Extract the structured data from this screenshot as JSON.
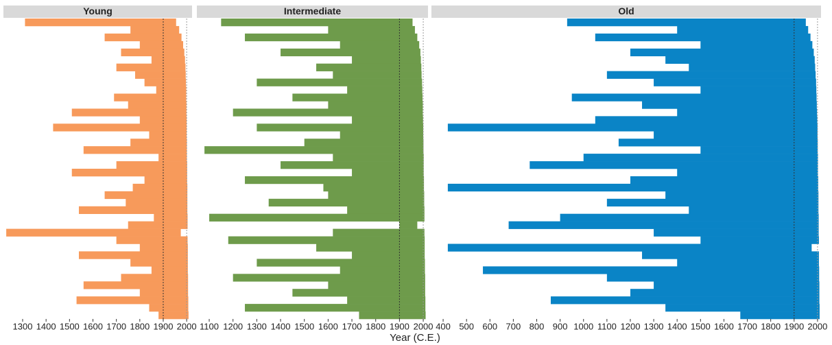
{
  "chart_data": [
    {
      "type": "range",
      "title": "Young",
      "color": "#f79a5b",
      "xlim": [
        1218,
        2023
      ],
      "xticks": [
        1300,
        1400,
        1500,
        1600,
        1700,
        1800,
        1900,
        2000
      ],
      "reference_lines": [
        1900,
        2000
      ],
      "start": [
        1310,
        1760,
        1650,
        1800,
        1720,
        1850,
        1700,
        1780,
        1820,
        1870,
        1690,
        1750,
        1510,
        1800,
        1430,
        1840,
        1760,
        1560,
        1880,
        1700,
        1510,
        1820,
        1770,
        1650,
        1740,
        1540,
        1860,
        1750,
        1230,
        1700,
        1800,
        1540,
        1760,
        1850,
        1720,
        1560,
        1800,
        1530,
        1840,
        1880
      ],
      "end": [
        1955,
        1968,
        1978,
        1985,
        1990,
        1993,
        1995,
        1996,
        1997,
        1998,
        1998,
        1999,
        1999,
        2000,
        2000,
        2000,
        2001,
        2001,
        2001,
        2002,
        2002,
        2002,
        2003,
        2003,
        2003,
        2003,
        2004,
        2004,
        1975,
        2004,
        2005,
        2005,
        2005,
        2005,
        2006,
        2006,
        2006,
        2007,
        2007,
        2008
      ]
    },
    {
      "type": "range",
      "title": "Intermediate",
      "color": "#6e9b4b",
      "xlabel": "Year (C.E.)",
      "xlim": [
        1048,
        2020
      ],
      "xticks": [
        1100,
        1200,
        1300,
        1400,
        1500,
        1600,
        1700,
        1800,
        1900,
        2000
      ],
      "reference_lines": [
        1900,
        2000
      ],
      "start": [
        1150,
        1600,
        1250,
        1650,
        1400,
        1700,
        1550,
        1620,
        1300,
        1680,
        1450,
        1600,
        1200,
        1700,
        1300,
        1650,
        1500,
        1080,
        1620,
        1400,
        1700,
        1250,
        1580,
        1600,
        1350,
        1680,
        1100,
        1900,
        1620,
        1180,
        1550,
        1700,
        1300,
        1650,
        1200,
        1600,
        1450,
        1680,
        1250,
        1730
      ],
      "end": [
        1955,
        1965,
        1975,
        1983,
        1988,
        1990,
        1992,
        1993,
        1995,
        1996,
        1997,
        1998,
        1998,
        1999,
        2000,
        2000,
        2001,
        2001,
        2002,
        2002,
        2002,
        2003,
        2003,
        2004,
        2004,
        2005,
        2005,
        1975,
        2005,
        2006,
        2006,
        2006,
        2007,
        2007,
        2008,
        2008,
        2008,
        2009,
        2009,
        2010
      ]
    },
    {
      "type": "range",
      "title": "Old",
      "color": "#0a84c6",
      "xlim": [
        350,
        2015
      ],
      "xticks": [
        400,
        500,
        600,
        700,
        800,
        900,
        1000,
        1100,
        1200,
        1300,
        1400,
        1500,
        1600,
        1700,
        1800,
        1900,
        2000
      ],
      "reference_lines": [
        1900,
        2000
      ],
      "start": [
        930,
        1400,
        1050,
        1500,
        1200,
        1350,
        1450,
        1100,
        1300,
        1500,
        950,
        1250,
        1400,
        1050,
        420,
        1300,
        1150,
        1500,
        1000,
        770,
        1400,
        1200,
        420,
        1350,
        1100,
        1450,
        900,
        680,
        1300,
        1500,
        420,
        1250,
        1400,
        570,
        1100,
        1300,
        1200,
        860,
        1350,
        1670
      ],
      "end": [
        1950,
        1960,
        1970,
        1978,
        1984,
        1988,
        1990,
        1992,
        1994,
        1995,
        1996,
        1997,
        1998,
        1999,
        2000,
        2000,
        2001,
        2001,
        2002,
        2002,
        2002,
        2003,
        2003,
        2004,
        2004,
        2004,
        2005,
        2005,
        2005,
        2006,
        1975,
        2006,
        2006,
        2007,
        2007,
        2008,
        2008,
        2008,
        2009,
        2009
      ]
    }
  ]
}
